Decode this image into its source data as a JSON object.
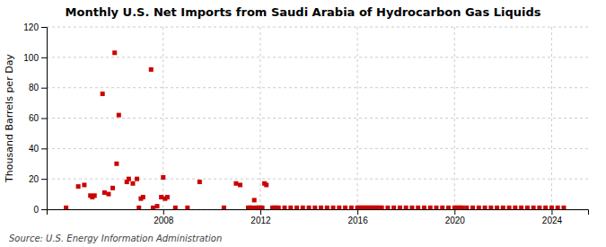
{
  "chart_data": {
    "type": "scatter",
    "title": "Monthly U.S. Net Imports from Saudi Arabia of Hydrocarbon Gas Liquids",
    "ylabel": "Thousand Barrels per Day",
    "annotations": [
      "Source: U.S. Energy Information Administration"
    ],
    "color": "#cc0000",
    "marker": "square",
    "grid": true,
    "xlim": [
      2003.2,
      2025.5
    ],
    "xticks": [
      2008,
      2012,
      2016,
      2020,
      2024
    ],
    "ylim": [
      0,
      120
    ],
    "yticks": [
      0,
      20,
      40,
      60,
      80,
      100,
      120
    ],
    "x": [
      2004.0,
      2004.5,
      2004.75,
      2005.0,
      2005.08,
      2005.17,
      2005.5,
      2005.58,
      2005.75,
      2005.92,
      2006.0,
      2006.08,
      2006.17,
      2006.5,
      2006.58,
      2006.75,
      2006.92,
      2007.0,
      2007.08,
      2007.17,
      2007.5,
      2007.58,
      2007.75,
      2007.92,
      2008.0,
      2008.08,
      2008.17,
      2008.5,
      2009.0,
      2009.5,
      2010.5,
      2011.0,
      2011.17,
      2011.5,
      2011.58,
      2011.67,
      2011.75,
      2011.83,
      2011.92,
      2012.0,
      2012.08,
      2012.17,
      2012.25,
      2012.5,
      2012.58,
      2012.67,
      2012.75,
      2013.0,
      2013.25,
      2013.5,
      2013.75,
      2014.0,
      2014.25,
      2014.5,
      2014.75,
      2015.0,
      2015.25,
      2015.5,
      2015.75,
      2016.0,
      2016.08,
      2016.17,
      2016.25,
      2016.33,
      2016.42,
      2016.5,
      2016.58,
      2016.67,
      2016.75,
      2016.83,
      2016.92,
      2017.0,
      2017.25,
      2017.5,
      2017.75,
      2018.0,
      2018.25,
      2018.5,
      2018.75,
      2019.0,
      2019.25,
      2019.5,
      2019.75,
      2020.0,
      2020.08,
      2020.17,
      2020.25,
      2020.33,
      2020.5,
      2020.75,
      2021.0,
      2021.25,
      2021.5,
      2021.75,
      2022.0,
      2022.25,
      2022.5,
      2022.75,
      2023.0,
      2023.25,
      2023.5,
      2023.75,
      2024.0,
      2024.25,
      2024.5
    ],
    "values": [
      1.0,
      15.0,
      16.0,
      9.0,
      8.0,
      9.0,
      76.0,
      11.0,
      10.0,
      14.0,
      103.0,
      30.0,
      62.0,
      18.0,
      20.0,
      17.0,
      20.0,
      1.0,
      7.0,
      8.0,
      92.0,
      1.0,
      2.0,
      8.0,
      21.0,
      7.0,
      8.0,
      1.0,
      1.0,
      18.0,
      1.0,
      17.0,
      16.0,
      1.0,
      1.0,
      1.0,
      6.0,
      1.0,
      1.0,
      1.0,
      1.0,
      17.0,
      16.0,
      1.0,
      1.0,
      1.0,
      1.0,
      1.0,
      1.0,
      1.0,
      1.0,
      1.0,
      1.0,
      1.0,
      1.0,
      1.0,
      1.0,
      1.0,
      1.0,
      1.0,
      1.0,
      1.0,
      1.0,
      1.0,
      1.0,
      1.0,
      1.0,
      1.0,
      1.0,
      1.0,
      1.0,
      1.0,
      1.0,
      1.0,
      1.0,
      1.0,
      1.0,
      1.0,
      1.0,
      1.0,
      1.0,
      1.0,
      1.0,
      1.0,
      1.0,
      1.0,
      1.0,
      1.0,
      1.0,
      1.0,
      1.0,
      1.0,
      1.0,
      1.0,
      1.0,
      1.0,
      1.0,
      1.0,
      1.0,
      1.0,
      1.0,
      1.0,
      1.0,
      1.0,
      1.0
    ]
  }
}
